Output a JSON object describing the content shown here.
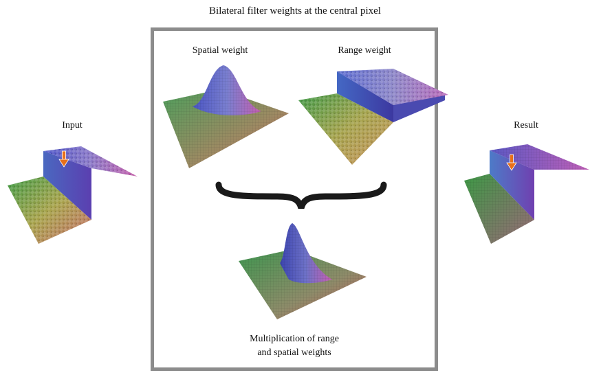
{
  "title": "Bilateral filter weights at the central pixel",
  "panels": {
    "input": {
      "label": "Input"
    },
    "spatial": {
      "label": "Spatial weight"
    },
    "range": {
      "label": "Range weight"
    },
    "result": {
      "label": "Result"
    },
    "product": {
      "label_line1": "Multiplication of range",
      "label_line2": "and spatial weights"
    }
  },
  "colors": {
    "frame": "#8c8c8c",
    "arrow": "#e8701a",
    "brace": "#1a1a1a",
    "surface_green": "#4da64d",
    "surface_blue": "#4a5bd0",
    "surface_red": "#c85a5a",
    "surface_magenta": "#b060c0"
  },
  "icons": [
    "down-arrow-icon",
    "curly-brace-icon"
  ]
}
